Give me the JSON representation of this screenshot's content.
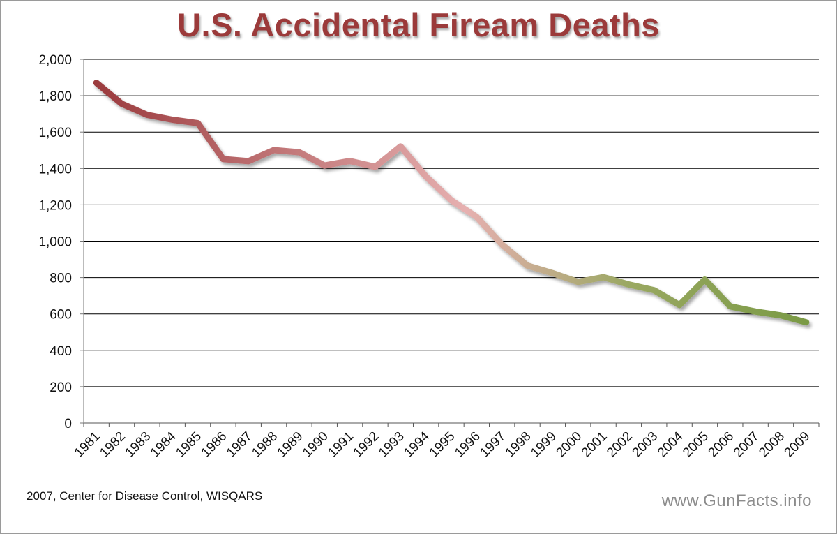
{
  "chart_data": {
    "type": "line",
    "title": "U.S. Accidental Fiream Deaths",
    "xlabel": "",
    "ylabel": "",
    "categories": [
      "1981",
      "1982",
      "1983",
      "1984",
      "1985",
      "1986",
      "1987",
      "1988",
      "1989",
      "1990",
      "1991",
      "1992",
      "1993",
      "1994",
      "1995",
      "1996",
      "1997",
      "1998",
      "1999",
      "2000",
      "2001",
      "2002",
      "2003",
      "2004",
      "2005",
      "2006",
      "2007",
      "2008",
      "2009"
    ],
    "series": [
      {
        "values": [
          1871,
          1756,
          1695,
          1668,
          1649,
          1452,
          1440,
          1501,
          1489,
          1416,
          1441,
          1409,
          1521,
          1356,
          1225,
          1134,
          981,
          866,
          824,
          776,
          802,
          762,
          730,
          649,
          789,
          642,
          613,
          592,
          554
        ]
      }
    ],
    "ylim": [
      0,
      2000
    ],
    "yticks": [
      "0",
      "200",
      "400",
      "600",
      "800",
      "1,000",
      "1,200",
      "1,400",
      "1,600",
      "1,800",
      "2,000"
    ],
    "grid": true,
    "colors": {
      "start": "#9b3b3e",
      "mid": "#e6b0b0",
      "end": "#7a9a45",
      "title": "#9b3a3a"
    }
  },
  "footer": {
    "source": "2007, Center for Disease Control,  WISQARS",
    "watermark": "www.GunFacts.info"
  }
}
